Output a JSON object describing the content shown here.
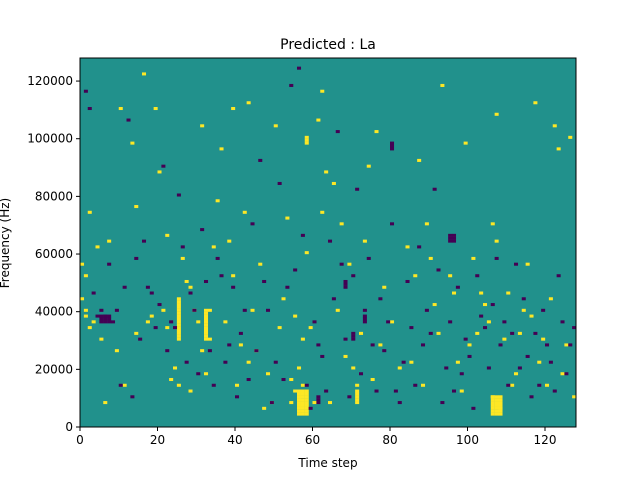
{
  "chart_data": {
    "type": "heatmap",
    "title": "Predicted : La",
    "xlabel": "Time step",
    "ylabel": "Frequency (Hz)",
    "xlim": [
      0,
      128
    ],
    "ylim": [
      0,
      128000
    ],
    "x_ticks": [
      0,
      20,
      40,
      60,
      80,
      100,
      120
    ],
    "x_tick_labels": [
      "0",
      "20",
      "40",
      "60",
      "80",
      "100",
      "120"
    ],
    "y_ticks": [
      0,
      20000,
      40000,
      60000,
      80000,
      100000,
      120000
    ],
    "y_tick_labels": [
      "0",
      "20000",
      "40000",
      "60000",
      "80000",
      "100000",
      "120000"
    ],
    "grid": false,
    "n_time_steps": 128,
    "n_freq_bins": 128,
    "freq_bin_hz": 1000,
    "levels": {
      "low": {
        "value": -1,
        "color": "#440154"
      },
      "mid": {
        "value": 0,
        "color": "#21918c"
      },
      "high": {
        "value": 1,
        "color": "#fde725"
      }
    },
    "high_cells": [
      [
        0,
        44
      ],
      [
        0,
        56
      ],
      [
        1,
        38
      ],
      [
        1,
        40
      ],
      [
        1,
        52
      ],
      [
        2,
        34
      ],
      [
        2,
        74
      ],
      [
        3,
        36
      ],
      [
        4,
        62
      ],
      [
        5,
        30
      ],
      [
        6,
        8
      ],
      [
        7,
        64
      ],
      [
        9,
        26
      ],
      [
        10,
        110
      ],
      [
        11,
        14
      ],
      [
        13,
        98
      ],
      [
        14,
        76
      ],
      [
        14,
        32
      ],
      [
        16,
        122
      ],
      [
        17,
        36
      ],
      [
        18,
        38
      ],
      [
        19,
        110
      ],
      [
        20,
        88
      ],
      [
        21,
        40
      ],
      [
        22,
        34
      ],
      [
        22,
        66
      ],
      [
        23,
        16
      ],
      [
        24,
        20
      ],
      [
        25,
        14
      ],
      [
        26,
        58
      ],
      [
        27,
        50
      ],
      [
        28,
        12
      ],
      [
        28,
        48
      ],
      [
        29,
        40
      ],
      [
        30,
        36
      ],
      [
        31,
        26
      ],
      [
        31,
        104
      ],
      [
        32,
        18
      ],
      [
        33,
        30
      ],
      [
        33,
        40
      ],
      [
        34,
        62
      ],
      [
        35,
        78
      ],
      [
        36,
        96
      ],
      [
        37,
        36
      ],
      [
        38,
        64
      ],
      [
        39,
        52
      ],
      [
        39,
        110
      ],
      [
        40,
        14
      ],
      [
        41,
        28
      ],
      [
        42,
        74
      ],
      [
        43,
        22
      ],
      [
        43,
        112
      ],
      [
        44,
        40
      ],
      [
        45,
        26
      ],
      [
        46,
        56
      ],
      [
        47,
        6
      ],
      [
        48,
        18
      ],
      [
        49,
        8
      ],
      [
        50,
        104
      ],
      [
        51,
        34
      ],
      [
        52,
        44
      ],
      [
        53,
        72
      ],
      [
        54,
        16
      ],
      [
        54,
        8
      ],
      [
        55,
        12
      ],
      [
        55,
        38
      ],
      [
        56,
        10
      ],
      [
        56,
        20
      ],
      [
        57,
        14
      ],
      [
        57,
        30
      ],
      [
        58,
        60
      ],
      [
        59,
        34
      ],
      [
        60,
        8
      ],
      [
        61,
        106
      ],
      [
        62,
        116
      ],
      [
        62,
        74
      ],
      [
        63,
        88
      ],
      [
        64,
        8
      ],
      [
        65,
        84
      ],
      [
        66,
        40
      ],
      [
        67,
        70
      ],
      [
        68,
        24
      ],
      [
        69,
        56
      ],
      [
        70,
        20
      ],
      [
        71,
        14
      ],
      [
        72,
        32
      ],
      [
        73,
        64
      ],
      [
        74,
        90
      ],
      [
        75,
        16
      ],
      [
        76,
        102
      ],
      [
        77,
        28
      ],
      [
        78,
        48
      ],
      [
        80,
        36
      ],
      [
        82,
        20
      ],
      [
        84,
        62
      ],
      [
        85,
        22
      ],
      [
        86,
        52
      ],
      [
        87,
        92
      ],
      [
        88,
        14
      ],
      [
        89,
        70
      ],
      [
        90,
        58
      ],
      [
        91,
        42
      ],
      [
        92,
        32
      ],
      [
        93,
        118
      ],
      [
        95,
        52
      ],
      [
        96,
        46
      ],
      [
        97,
        22
      ],
      [
        98,
        12
      ],
      [
        99,
        98
      ],
      [
        100,
        28
      ],
      [
        101,
        58
      ],
      [
        102,
        32
      ],
      [
        103,
        46
      ],
      [
        104,
        42
      ],
      [
        105,
        36
      ],
      [
        106,
        10
      ],
      [
        106,
        70
      ],
      [
        107,
        64
      ],
      [
        107,
        108
      ],
      [
        108,
        6
      ],
      [
        109,
        30
      ],
      [
        110,
        46
      ],
      [
        111,
        14
      ],
      [
        112,
        18
      ],
      [
        113,
        32
      ],
      [
        114,
        40
      ],
      [
        115,
        56
      ],
      [
        116,
        38
      ],
      [
        117,
        112
      ],
      [
        118,
        22
      ],
      [
        119,
        30
      ],
      [
        120,
        14
      ],
      [
        121,
        44
      ],
      [
        122,
        104
      ],
      [
        123,
        96
      ],
      [
        124,
        18
      ],
      [
        125,
        28
      ],
      [
        126,
        100
      ],
      [
        127,
        10
      ]
    ],
    "high_runs": [
      [
        56,
        4,
        12
      ],
      [
        57,
        4,
        12
      ],
      [
        58,
        4,
        12
      ],
      [
        106,
        4,
        10
      ],
      [
        107,
        4,
        10
      ],
      [
        108,
        4,
        10
      ],
      [
        32,
        30,
        40
      ],
      [
        25,
        30,
        44
      ],
      [
        71,
        8,
        12
      ],
      [
        58,
        98,
        100
      ]
    ],
    "low_cells": [
      [
        1,
        116
      ],
      [
        2,
        110
      ],
      [
        3,
        46
      ],
      [
        4,
        38
      ],
      [
        5,
        40
      ],
      [
        6,
        38
      ],
      [
        7,
        56
      ],
      [
        8,
        36
      ],
      [
        9,
        40
      ],
      [
        10,
        14
      ],
      [
        11,
        48
      ],
      [
        12,
        106
      ],
      [
        13,
        10
      ],
      [
        14,
        58
      ],
      [
        15,
        30
      ],
      [
        16,
        64
      ],
      [
        17,
        48
      ],
      [
        18,
        46
      ],
      [
        19,
        34
      ],
      [
        20,
        42
      ],
      [
        21,
        90
      ],
      [
        22,
        26
      ],
      [
        23,
        36
      ],
      [
        24,
        34
      ],
      [
        25,
        80
      ],
      [
        26,
        62
      ],
      [
        27,
        22
      ],
      [
        28,
        46
      ],
      [
        29,
        40
      ],
      [
        30,
        18
      ],
      [
        31,
        68
      ],
      [
        32,
        50
      ],
      [
        33,
        26
      ],
      [
        34,
        14
      ],
      [
        35,
        58
      ],
      [
        36,
        52
      ],
      [
        37,
        22
      ],
      [
        38,
        28
      ],
      [
        39,
        48
      ],
      [
        40,
        10
      ],
      [
        41,
        32
      ],
      [
        42,
        40
      ],
      [
        43,
        16
      ],
      [
        44,
        70
      ],
      [
        45,
        26
      ],
      [
        46,
        92
      ],
      [
        47,
        50
      ],
      [
        48,
        40
      ],
      [
        49,
        8
      ],
      [
        50,
        22
      ],
      [
        51,
        84
      ],
      [
        52,
        16
      ],
      [
        53,
        48
      ],
      [
        54,
        118
      ],
      [
        55,
        54
      ],
      [
        56,
        124
      ],
      [
        57,
        66
      ],
      [
        58,
        14
      ],
      [
        59,
        6
      ],
      [
        60,
        36
      ],
      [
        61,
        28
      ],
      [
        62,
        24
      ],
      [
        63,
        12
      ],
      [
        64,
        64
      ],
      [
        65,
        44
      ],
      [
        66,
        102
      ],
      [
        67,
        56
      ],
      [
        68,
        30
      ],
      [
        69,
        10
      ],
      [
        70,
        52
      ],
      [
        71,
        82
      ],
      [
        72,
        18
      ],
      [
        73,
        40
      ],
      [
        74,
        58
      ],
      [
        75,
        28
      ],
      [
        76,
        12
      ],
      [
        77,
        44
      ],
      [
        78,
        26
      ],
      [
        79,
        36
      ],
      [
        80,
        70
      ],
      [
        81,
        12
      ],
      [
        82,
        8
      ],
      [
        83,
        22
      ],
      [
        84,
        50
      ],
      [
        85,
        34
      ],
      [
        86,
        14
      ],
      [
        87,
        62
      ],
      [
        88,
        28
      ],
      [
        89,
        40
      ],
      [
        90,
        32
      ],
      [
        91,
        82
      ],
      [
        92,
        54
      ],
      [
        93,
        8
      ],
      [
        94,
        20
      ],
      [
        95,
        36
      ],
      [
        96,
        12
      ],
      [
        97,
        48
      ],
      [
        98,
        18
      ],
      [
        99,
        30
      ],
      [
        100,
        24
      ],
      [
        101,
        6
      ],
      [
        102,
        52
      ],
      [
        103,
        38
      ],
      [
        104,
        34
      ],
      [
        105,
        20
      ],
      [
        106,
        42
      ],
      [
        107,
        58
      ],
      [
        108,
        28
      ],
      [
        109,
        36
      ],
      [
        110,
        14
      ],
      [
        111,
        32
      ],
      [
        112,
        56
      ],
      [
        113,
        20
      ],
      [
        114,
        44
      ],
      [
        115,
        24
      ],
      [
        116,
        10
      ],
      [
        117,
        32
      ],
      [
        118,
        14
      ],
      [
        119,
        40
      ],
      [
        120,
        28
      ],
      [
        121,
        22
      ],
      [
        122,
        12
      ],
      [
        123,
        52
      ],
      [
        124,
        36
      ],
      [
        125,
        18
      ],
      [
        126,
        28
      ],
      [
        127,
        34
      ]
    ],
    "low_runs": [
      [
        5,
        36,
        38
      ],
      [
        6,
        36,
        38
      ],
      [
        7,
        36,
        38
      ],
      [
        73,
        36,
        38
      ],
      [
        95,
        64,
        66
      ],
      [
        96,
        64,
        66
      ],
      [
        61,
        8,
        10
      ],
      [
        68,
        48,
        50
      ],
      [
        70,
        30,
        32
      ],
      [
        80,
        96,
        98
      ]
    ]
  }
}
